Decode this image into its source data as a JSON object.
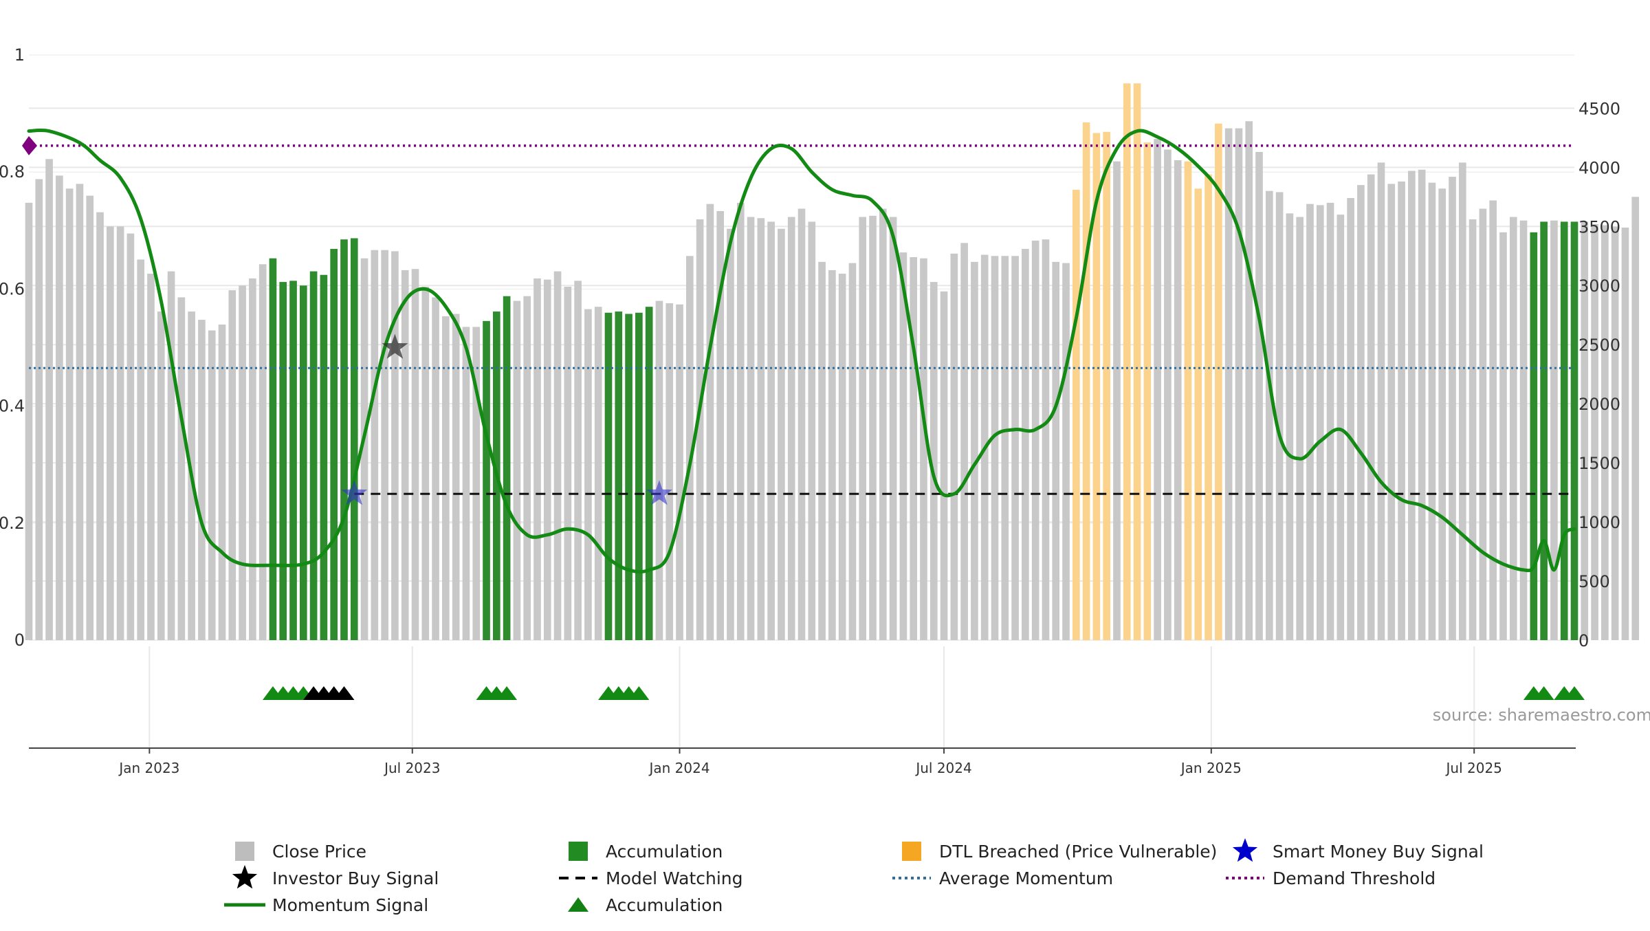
{
  "chart_data": {
    "type": "bar",
    "title": "",
    "source": "source: sharemaestro.com",
    "x_start": "2022-10-10",
    "x_end": "2025-09-08",
    "x_ticks": [
      {
        "date": "2023-01-01",
        "label": "Jan 2023"
      },
      {
        "date": "2023-07-01",
        "label": "Jul 2023"
      },
      {
        "date": "2024-01-01",
        "label": "Jan 2024"
      },
      {
        "date": "2024-07-01",
        "label": "Jul 2024"
      },
      {
        "date": "2025-01-01",
        "label": "Jan 2025"
      },
      {
        "date": "2025-07-01",
        "label": "Jul 2025"
      }
    ],
    "y_left": {
      "min": 0,
      "max": 1,
      "ticks": [
        0,
        0.2,
        0.4,
        0.6,
        0.8,
        1
      ],
      "tick_labels": [
        "0",
        "0.2",
        "0.4",
        "0.6",
        "0.8",
        "1"
      ]
    },
    "y_right": {
      "min": 0,
      "max": 4950,
      "ticks": [
        0,
        500,
        1000,
        1500,
        2000,
        2500,
        3000,
        3500,
        4000,
        4500
      ],
      "tick_labels": [
        "0",
        "500",
        "1000",
        "1500",
        "2000",
        "2500",
        "3000",
        "3500",
        "4000",
        "4500"
      ]
    },
    "close_price": {
      "name": "Close Price",
      "start_date": "2022-10-10",
      "interval_days": 7,
      "values": [
        3700,
        3900,
        4070,
        3930,
        3820,
        3860,
        3760,
        3620,
        3500,
        3500,
        3440,
        3220,
        3100,
        2780,
        3120,
        2900,
        2780,
        2710,
        2620,
        2670,
        2960,
        3000,
        3060,
        3180,
        3230,
        3030,
        3040,
        3000,
        3120,
        3090,
        3310,
        3390,
        3400,
        3230,
        3300,
        3300,
        3290,
        3130,
        3140,
        2990,
        2900,
        2740,
        2760,
        2650,
        2650,
        2700,
        2780,
        2910,
        2870,
        2910,
        3060,
        3050,
        3120,
        2990,
        3040,
        2800,
        2820,
        2770,
        2780,
        2760,
        2770,
        2820,
        2870,
        2850,
        2840,
        3250,
        3560,
        3690,
        3630,
        3480,
        3700,
        3580,
        3570,
        3540,
        3480,
        3580,
        3650,
        3540,
        3200,
        3130,
        3100,
        3190,
        3580,
        3590,
        3650,
        3580,
        3280,
        3240,
        3230,
        3030,
        2950,
        3270,
        3360,
        3200,
        3260,
        3250,
        3250,
        3250,
        3310,
        3380,
        3390,
        3200,
        3190,
        3810,
        4380,
        4290,
        4300,
        4050,
        4710,
        4710,
        4210,
        4240,
        4150,
        4060,
        4050,
        3820,
        3940,
        4370,
        4330,
        4330,
        4390,
        4130,
        3800,
        3790,
        3610,
        3580,
        3690,
        3680,
        3700,
        3600,
        3740,
        3850,
        3940,
        4040,
        3860,
        3880,
        3970,
        3980,
        3870,
        3820,
        3920,
        4040,
        3560,
        3650,
        3720,
        3450,
        3580,
        3550,
        3450,
        3540,
        3550,
        3540,
        3540,
        3540,
        3520,
        3510,
        3500,
        3490,
        3750
      ]
    },
    "accumulation_bars": {
      "name": "Accumulation",
      "ranges": [
        [
          "2023-03-27",
          "2023-05-22"
        ],
        [
          "2023-08-21",
          "2023-09-04"
        ],
        [
          "2023-11-13",
          "2023-12-11"
        ],
        [
          "2025-08-11",
          "2025-08-18"
        ],
        [
          "2025-09-01",
          "2025-09-08"
        ]
      ]
    },
    "dtl_breached_bars": {
      "name": "DTL Breached (Price Vulnerable)",
      "ranges": [
        [
          "2024-09-30",
          "2024-10-21"
        ],
        [
          "2024-11-04",
          "2024-11-18"
        ],
        [
          "2024-12-16",
          "2025-01-06"
        ]
      ]
    },
    "momentum_signal": {
      "name": "Momentum Signal",
      "points": [
        [
          "2022-10-10",
          0.87
        ],
        [
          "2022-10-24",
          0.87
        ],
        [
          "2022-11-14",
          0.85
        ],
        [
          "2022-11-28",
          0.82
        ],
        [
          "2022-12-12",
          0.79
        ],
        [
          "2022-12-26",
          0.72
        ],
        [
          "2023-01-09",
          0.58
        ],
        [
          "2023-01-23",
          0.38
        ],
        [
          "2023-02-06",
          0.2
        ],
        [
          "2023-02-20",
          0.15
        ],
        [
          "2023-03-06",
          0.13
        ],
        [
          "2023-03-27",
          0.128
        ],
        [
          "2023-04-17",
          0.13
        ],
        [
          "2023-05-01",
          0.15
        ],
        [
          "2023-05-15",
          0.21
        ],
        [
          "2023-05-29",
          0.35
        ],
        [
          "2023-06-12",
          0.5
        ],
        [
          "2023-06-26",
          0.58
        ],
        [
          "2023-07-10",
          0.6
        ],
        [
          "2023-07-24",
          0.57
        ],
        [
          "2023-08-07",
          0.5
        ],
        [
          "2023-08-21",
          0.35
        ],
        [
          "2023-09-04",
          0.23
        ],
        [
          "2023-09-18",
          0.18
        ],
        [
          "2023-10-02",
          0.18
        ],
        [
          "2023-10-16",
          0.19
        ],
        [
          "2023-10-30",
          0.18
        ],
        [
          "2023-11-13",
          0.14
        ],
        [
          "2023-11-27",
          0.12
        ],
        [
          "2023-12-11",
          0.12
        ],
        [
          "2023-12-25",
          0.15
        ],
        [
          "2024-01-08",
          0.3
        ],
        [
          "2024-01-22",
          0.5
        ],
        [
          "2024-02-05",
          0.68
        ],
        [
          "2024-02-19",
          0.79
        ],
        [
          "2024-03-04",
          0.84
        ],
        [
          "2024-03-18",
          0.84
        ],
        [
          "2024-04-01",
          0.8
        ],
        [
          "2024-04-15",
          0.77
        ],
        [
          "2024-04-29",
          0.76
        ],
        [
          "2024-05-13",
          0.75
        ],
        [
          "2024-05-27",
          0.69
        ],
        [
          "2024-06-10",
          0.5
        ],
        [
          "2024-06-24",
          0.28
        ],
        [
          "2024-07-08",
          0.25
        ],
        [
          "2024-07-22",
          0.3
        ],
        [
          "2024-08-05",
          0.35
        ],
        [
          "2024-08-19",
          0.36
        ],
        [
          "2024-09-02",
          0.36
        ],
        [
          "2024-09-16",
          0.4
        ],
        [
          "2024-09-30",
          0.55
        ],
        [
          "2024-10-14",
          0.75
        ],
        [
          "2024-10-28",
          0.84
        ],
        [
          "2024-11-11",
          0.87
        ],
        [
          "2024-11-25",
          0.86
        ],
        [
          "2024-12-09",
          0.84
        ],
        [
          "2024-12-23",
          0.81
        ],
        [
          "2025-01-06",
          0.77
        ],
        [
          "2025-01-20",
          0.7
        ],
        [
          "2025-02-03",
          0.55
        ],
        [
          "2025-02-17",
          0.35
        ],
        [
          "2025-03-03",
          0.31
        ],
        [
          "2025-03-17",
          0.34
        ],
        [
          "2025-03-31",
          0.36
        ],
        [
          "2025-04-14",
          0.32
        ],
        [
          "2025-04-28",
          0.27
        ],
        [
          "2025-05-12",
          0.24
        ],
        [
          "2025-05-26",
          0.23
        ],
        [
          "2025-06-09",
          0.21
        ],
        [
          "2025-06-23",
          0.18
        ],
        [
          "2025-07-07",
          0.15
        ],
        [
          "2025-07-21",
          0.13
        ],
        [
          "2025-08-04",
          0.12
        ],
        [
          "2025-08-11",
          0.125
        ],
        [
          "2025-08-18",
          0.17
        ],
        [
          "2025-08-25",
          0.12
        ],
        [
          "2025-09-01",
          0.18
        ],
        [
          "2025-09-08",
          0.19
        ]
      ]
    },
    "demand_threshold": {
      "name": "Demand Threshold",
      "value": 0.845
    },
    "average_momentum": {
      "name": "Average Momentum",
      "value": 0.465
    },
    "model_watching": {
      "name": "Model Watching",
      "value": 0.25,
      "start": "2023-05-22",
      "end": "2025-09-08"
    },
    "smart_money_buy_signals": {
      "name": "Smart Money Buy Signal",
      "points": [
        [
          "2023-05-22",
          0.25
        ],
        [
          "2023-12-18",
          0.25
        ]
      ]
    },
    "investor_buy_signals": {
      "name": "Investor Buy Signal",
      "points": [
        [
          "2023-06-19",
          0.5
        ]
      ]
    },
    "accumulation_markers": {
      "name": "Accumulation",
      "dates": [
        "2023-03-27",
        "2023-04-03",
        "2023-04-10",
        "2023-04-17",
        "2023-08-21",
        "2023-08-28",
        "2023-09-04",
        "2023-11-13",
        "2023-11-20",
        "2023-11-27",
        "2023-12-04",
        "2025-08-11",
        "2025-08-18",
        "2025-09-01",
        "2025-09-08"
      ]
    },
    "investor_markers": {
      "name": "Investor Buy Signal",
      "dates": [
        "2023-04-24",
        "2023-05-01",
        "2023-05-08",
        "2023-05-15"
      ]
    },
    "legend": [
      {
        "label": "Close Price",
        "symbol": "square",
        "color": "#bdbdbd"
      },
      {
        "label": "Accumulation",
        "symbol": "square",
        "color": "#228b22"
      },
      {
        "label": "DTL Breached (Price Vulnerable)",
        "symbol": "square",
        "color": "#f5a623"
      },
      {
        "label": "Smart Money Buy Signal",
        "symbol": "star",
        "color": "#0000cc"
      },
      {
        "label": "Investor Buy Signal",
        "symbol": "star",
        "color": "#000000"
      },
      {
        "label": "Model Watching",
        "symbol": "dash",
        "color": "#000000"
      },
      {
        "label": "Average Momentum",
        "symbol": "dot",
        "color": "#2f6f9f"
      },
      {
        "label": "Demand Threshold",
        "symbol": "dot",
        "color": "#800080"
      },
      {
        "label": "Momentum Signal",
        "symbol": "line",
        "color": "#128012"
      },
      {
        "label": "Accumulation",
        "symbol": "triangle",
        "color": "#128012"
      }
    ],
    "colors": {
      "close_price": "#c8c8c8",
      "accumulation": "#2e8b2e",
      "dtl": "#fbd38d",
      "momentum": "#138a13",
      "demand_threshold": "#800080",
      "average_momentum": "#2f6f9f",
      "smart_money": "#3333cc",
      "grid": "#e8e8e8",
      "axis": "#444444"
    }
  }
}
